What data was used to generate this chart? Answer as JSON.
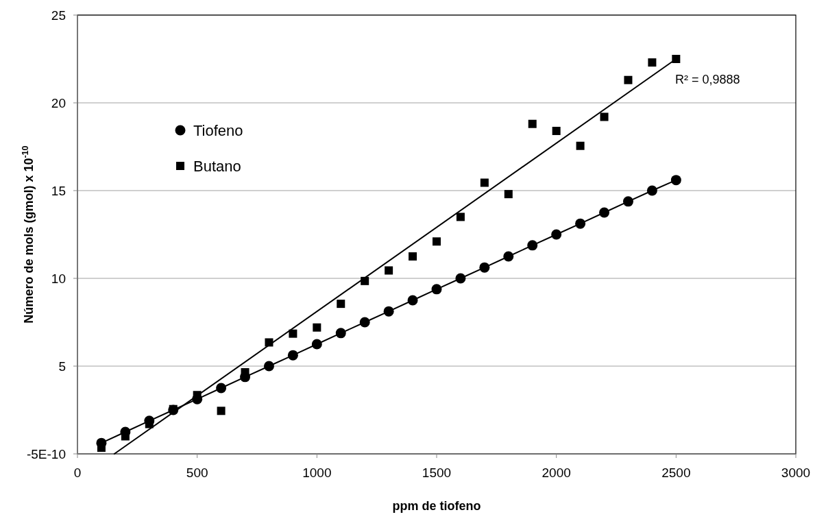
{
  "chart_data": {
    "type": "scatter",
    "xlabel": "ppm de tiofeno",
    "ylabel": "Número de mols (gmol) x 10$^{-10}$",
    "x": [
      100,
      200,
      300,
      400,
      500,
      600,
      700,
      800,
      900,
      1000,
      1100,
      1200,
      1300,
      1400,
      1500,
      1600,
      1700,
      1800,
      1900,
      2000,
      2100,
      2200,
      2300,
      2400,
      2500
    ],
    "series": [
      {
        "name": "Tiofeno",
        "type": "line",
        "marker": "circle",
        "color": "#000000",
        "values": [
          0.62,
          1.25,
          1.88,
          2.5,
          3.12,
          3.75,
          4.38,
          5.0,
          5.62,
          6.25,
          6.88,
          7.5,
          8.12,
          8.75,
          9.38,
          10.0,
          10.62,
          11.25,
          11.88,
          12.5,
          13.12,
          13.75,
          14.38,
          15.0,
          15.6
        ]
      },
      {
        "name": "Butano",
        "type": "scatter",
        "marker": "square",
        "color": "#000000",
        "values": [
          0.35,
          1.0,
          1.7,
          2.55,
          3.35,
          2.45,
          4.65,
          6.35,
          6.85,
          7.2,
          8.55,
          9.85,
          10.45,
          11.25,
          12.1,
          13.5,
          15.45,
          14.8,
          18.8,
          18.4,
          17.55,
          19.2,
          21.3,
          22.3,
          22.5
        ]
      },
      {
        "type": "line",
        "marker": "none",
        "color": "#000000",
        "x": [
          154,
          2500
        ],
        "values": [
          0,
          22.5
        ]
      }
    ],
    "xlim": [
      0,
      3000
    ],
    "xticks": [
      0,
      500,
      1000,
      1500,
      2000,
      2500,
      3000
    ],
    "ylim": [
      -5e-10,
      25
    ],
    "yticks": [
      {
        "value": -5e-10,
        "label": "-5E-10"
      },
      5,
      10,
      15,
      20,
      25
    ],
    "grid": "y",
    "legend": "top left",
    "annotations": [
      "R² = 0,9888"
    ]
  }
}
